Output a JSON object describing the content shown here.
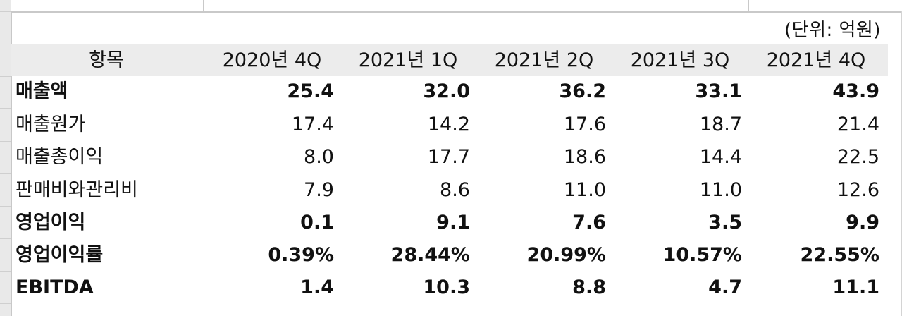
{
  "table": {
    "unit_label": "(단위: 억원)",
    "headers": [
      "항목",
      "2020년 4Q",
      "2021년 1Q",
      "2021년 2Q",
      "2021년 3Q",
      "2021년 4Q"
    ],
    "rows": [
      {
        "label": "매출액",
        "bold": true,
        "values": [
          "25.4",
          "32.0",
          "36.2",
          "33.1",
          "43.9"
        ]
      },
      {
        "label": "매출원가",
        "bold": false,
        "values": [
          "17.4",
          "14.2",
          "17.6",
          "18.7",
          "21.4"
        ]
      },
      {
        "label": "매출총이익",
        "bold": false,
        "values": [
          "8.0",
          "17.7",
          "18.6",
          "14.4",
          "22.5"
        ]
      },
      {
        "label": "판매비와관리비",
        "bold": false,
        "values": [
          "7.9",
          "8.6",
          "11.0",
          "11.0",
          "12.6"
        ]
      },
      {
        "label": "영업이익",
        "bold": true,
        "values": [
          "0.1",
          "9.1",
          "7.6",
          "3.5",
          "9.9"
        ]
      },
      {
        "label": "영업이익률",
        "bold": true,
        "values": [
          "0.39%",
          "28.44%",
          "20.99%",
          "10.57%",
          "22.55%"
        ]
      },
      {
        "label": "EBITDA",
        "bold": true,
        "values": [
          "1.4",
          "10.3",
          "8.8",
          "4.7",
          "11.1"
        ]
      }
    ]
  }
}
